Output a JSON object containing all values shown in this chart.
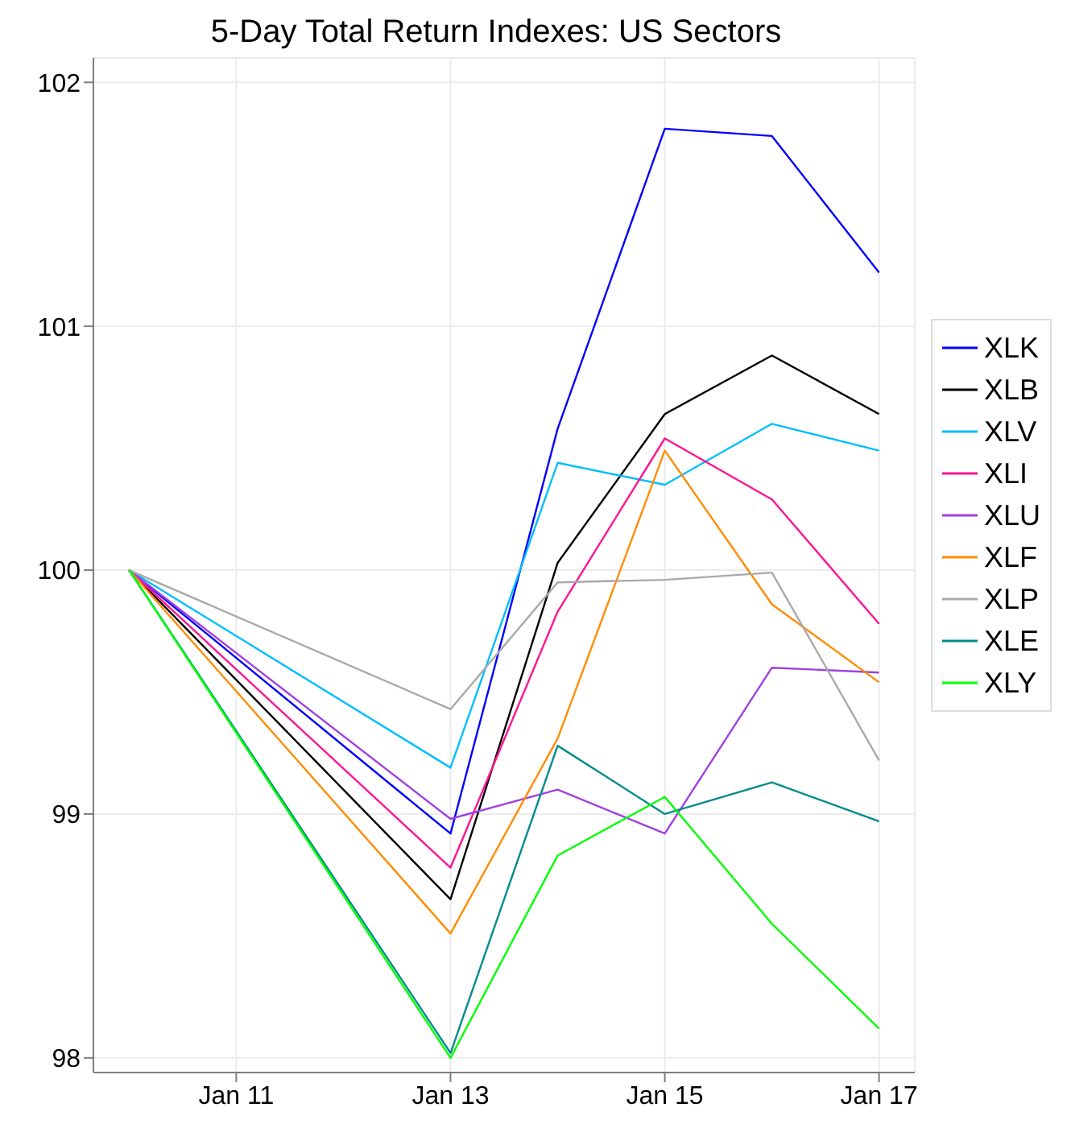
{
  "chart_data": {
    "type": "line",
    "title": "5-Day Total Return Indexes: US Sectors",
    "x": [
      "--01-10",
      "--01-13",
      "--01-14",
      "--01-15",
      "--01-16",
      "--01-17"
    ],
    "series": [
      {
        "name": "XLK",
        "color": "#0000ff",
        "values": [
          100,
          98.92,
          100.58,
          101.81,
          101.78,
          101.22
        ]
      },
      {
        "name": "XLB",
        "color": "#000000",
        "values": [
          100,
          98.65,
          100.03,
          100.64,
          100.88,
          100.64
        ]
      },
      {
        "name": "XLV",
        "color": "#00bfff",
        "values": [
          100,
          99.19,
          100.44,
          100.35,
          100.6,
          100.49
        ]
      },
      {
        "name": "XLI",
        "color": "#ff1493",
        "values": [
          100,
          98.78,
          99.83,
          100.54,
          100.29,
          99.78
        ]
      },
      {
        "name": "XLU",
        "color": "#a040e0",
        "values": [
          100,
          98.98,
          99.1,
          98.92,
          99.6,
          99.58
        ]
      },
      {
        "name": "XLF",
        "color": "#ff8c00",
        "values": [
          100,
          98.51,
          99.31,
          100.49,
          99.86,
          99.54
        ]
      },
      {
        "name": "XLP",
        "color": "#a9a9a9",
        "values": [
          100,
          99.43,
          99.95,
          99.96,
          99.99,
          99.22
        ]
      },
      {
        "name": "XLE",
        "color": "#008b8b",
        "values": [
          100,
          98.02,
          99.28,
          99.0,
          99.13,
          98.97
        ]
      },
      {
        "name": "XLY",
        "color": "#00ff00",
        "values": [
          100,
          98.0,
          98.83,
          99.07,
          98.55,
          98.12
        ]
      }
    ],
    "xlim": [
      "--01-09T16:00",
      "--01-17T08:00"
    ],
    "xticks": [
      {
        "value": "--01-11",
        "label": "Jan 11"
      },
      {
        "value": "--01-13",
        "label": "Jan 13"
      },
      {
        "value": "--01-15",
        "label": "Jan 15"
      },
      {
        "value": "--01-17",
        "label": "Jan 17"
      }
    ],
    "ylim": [
      97.94,
      102.1
    ],
    "yticks": [
      98,
      99,
      100,
      101,
      102
    ],
    "grid": true,
    "legend": "right",
    "marker": "none",
    "line_style": "solid"
  }
}
